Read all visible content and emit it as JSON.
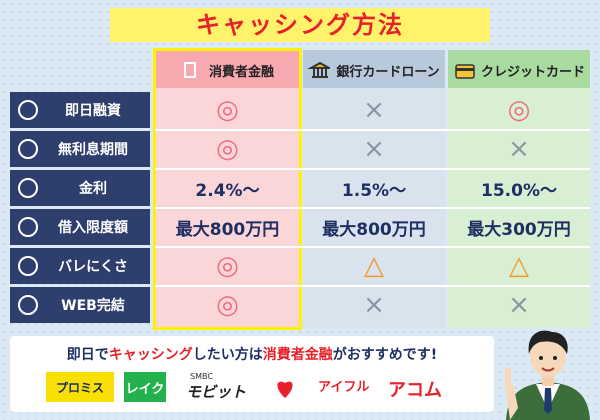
{
  "title": "キャッシング方法",
  "table": {
    "columns": [
      "消費者金融",
      "銀行カードローン",
      "クレジットカード"
    ],
    "rows": [
      {
        "label": "即日融資",
        "cells": [
          "◎",
          "×",
          "◎"
        ]
      },
      {
        "label": "無利息期間",
        "cells": [
          "◎",
          "×",
          "×"
        ]
      },
      {
        "label": "金利",
        "cells": [
          "2.4%〜",
          "1.5%〜",
          "15.0%〜"
        ]
      },
      {
        "label": "借入限度額",
        "cells": [
          "最大800万円",
          "最大800万円",
          "最大300万円"
        ]
      },
      {
        "label": "バレにくさ",
        "cells": [
          "◎",
          "△",
          "△"
        ]
      },
      {
        "label": "WEB完結",
        "cells": [
          "◎",
          "×",
          "×"
        ]
      }
    ]
  },
  "footer": {
    "message": [
      "即日で",
      "キャッシング",
      "したい方は",
      "消費者金融",
      "がおすすめです!"
    ],
    "logos": [
      "プロミス",
      "レイク",
      "SMBC",
      "モビット",
      "アイフル",
      "アコム"
    ]
  }
}
